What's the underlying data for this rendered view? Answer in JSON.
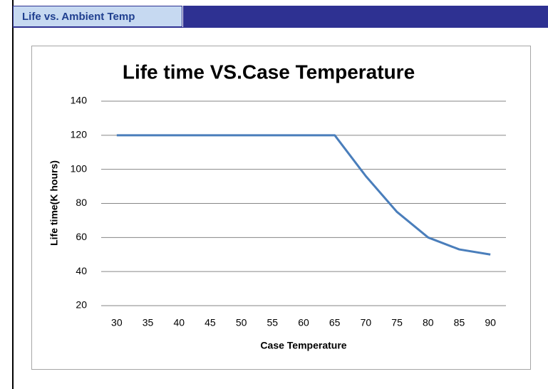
{
  "header": {
    "tab": "Life vs. Ambient Temp"
  },
  "chart_data": {
    "type": "line",
    "title": "Life time VS.Case Temperature",
    "x_label": "Case Temperature",
    "y_label": "Life time(K hours)",
    "categories": [
      "30",
      "35",
      "40",
      "45",
      "50",
      "55",
      "60",
      "65",
      "70",
      "75",
      "80",
      "85",
      "90"
    ],
    "values": [
      120,
      120,
      120,
      120,
      120,
      120,
      120,
      120,
      96,
      75,
      60,
      53,
      50
    ],
    "color": "#4a7ebb",
    "ylim": [
      20,
      140
    ],
    "yticks": [
      20,
      40,
      60,
      80,
      100,
      120,
      140
    ],
    "grid": true
  }
}
